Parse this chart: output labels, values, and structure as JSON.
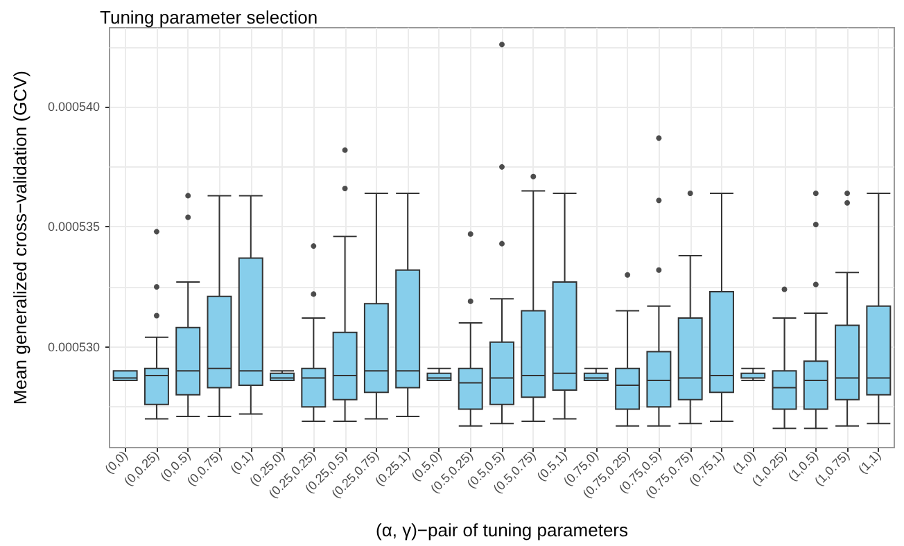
{
  "chart_data": {
    "type": "box",
    "title": "Tuning parameter selection",
    "xlabel": "(α, γ)−pair of tuning parameters",
    "ylabel": "Mean generalized cross−validation (GCV)",
    "categories": [
      "(0,0)",
      "(0,0.25)",
      "(0,0.5)",
      "(0,0.75)",
      "(0,1)",
      "(0.25,0)",
      "(0.25,0.25)",
      "(0.25,0.5)",
      "(0.25,0.75)",
      "(0.25,1)",
      "(0.5,0)",
      "(0.5,0.25)",
      "(0.5,0.5)",
      "(0.5,0.75)",
      "(0.5,1)",
      "(0.75,0)",
      "(0.75,0.25)",
      "(0.75,0.5)",
      "(0.75,0.75)",
      "(0.75,1)",
      "(1,0)",
      "(1,0.25)",
      "(1,0.5)",
      "(1,0.75)",
      "(1,1)"
    ],
    "ylim": [
      0.0005258,
      0.0005433
    ],
    "yticks": [
      {
        "value": 0.0005275,
        "label": null
      },
      {
        "value": 0.00053,
        "label": "0.000530"
      },
      {
        "value": 0.0005325,
        "label": null
      },
      {
        "value": 0.000535,
        "label": "0.000535"
      },
      {
        "value": 0.0005375,
        "label": null
      },
      {
        "value": 0.00054,
        "label": "0.000540"
      },
      {
        "value": 0.0005425,
        "label": null
      }
    ],
    "grid": true,
    "series": [
      {
        "color": "#87ceeb",
        "boxes": [
          {
            "low": 0.0005286,
            "q1": 0.0005286,
            "median": 0.0005287,
            "q3": 0.000529,
            "high": 0.000529
          },
          {
            "low": 0.000527,
            "q1": 0.0005276,
            "median": 0.0005288,
            "q3": 0.0005291,
            "high": 0.0005304,
            "outliers": [
              0.0005348,
              0.0005325,
              0.0005313
            ]
          },
          {
            "low": 0.0005271,
            "q1": 0.000528,
            "median": 0.000529,
            "q3": 0.0005308,
            "high": 0.0005327,
            "outliers": [
              0.0005363,
              0.0005354
            ]
          },
          {
            "low": 0.0005271,
            "q1": 0.0005283,
            "median": 0.0005291,
            "q3": 0.0005321,
            "high": 0.0005363
          },
          {
            "low": 0.0005272,
            "q1": 0.0005284,
            "median": 0.000529,
            "q3": 0.0005337,
            "high": 0.0005363
          },
          {
            "low": 0.0005286,
            "q1": 0.0005286,
            "median": 0.0005287,
            "q3": 0.0005289,
            "high": 0.000529
          },
          {
            "low": 0.0005269,
            "q1": 0.0005275,
            "median": 0.0005287,
            "q3": 0.0005291,
            "high": 0.0005312,
            "outliers": [
              0.0005342,
              0.0005322
            ]
          },
          {
            "low": 0.0005269,
            "q1": 0.0005278,
            "median": 0.0005288,
            "q3": 0.0005306,
            "high": 0.0005346,
            "outliers": [
              0.0005382,
              0.0005366
            ]
          },
          {
            "low": 0.000527,
            "q1": 0.0005281,
            "median": 0.000529,
            "q3": 0.0005318,
            "high": 0.0005364
          },
          {
            "low": 0.0005271,
            "q1": 0.0005283,
            "median": 0.000529,
            "q3": 0.0005332,
            "high": 0.0005364
          },
          {
            "low": 0.0005286,
            "q1": 0.0005286,
            "median": 0.0005287,
            "q3": 0.0005289,
            "high": 0.0005291
          },
          {
            "low": 0.0005267,
            "q1": 0.0005274,
            "median": 0.0005285,
            "q3": 0.0005291,
            "high": 0.000531,
            "outliers": [
              0.0005347,
              0.0005319
            ]
          },
          {
            "low": 0.0005268,
            "q1": 0.0005276,
            "median": 0.0005287,
            "q3": 0.0005302,
            "high": 0.000532,
            "outliers": [
              0.0005426,
              0.0005375,
              0.0005343
            ]
          },
          {
            "low": 0.0005269,
            "q1": 0.0005279,
            "median": 0.0005288,
            "q3": 0.0005315,
            "high": 0.0005365,
            "outliers": [
              0.0005371
            ]
          },
          {
            "low": 0.000527,
            "q1": 0.0005282,
            "median": 0.0005289,
            "q3": 0.0005327,
            "high": 0.0005364
          },
          {
            "low": 0.0005286,
            "q1": 0.0005286,
            "median": 0.0005287,
            "q3": 0.0005289,
            "high": 0.0005291
          },
          {
            "low": 0.0005267,
            "q1": 0.0005274,
            "median": 0.0005284,
            "q3": 0.0005291,
            "high": 0.0005315,
            "outliers": [
              0.000533
            ]
          },
          {
            "low": 0.0005267,
            "q1": 0.0005275,
            "median": 0.0005286,
            "q3": 0.0005298,
            "high": 0.0005317,
            "outliers": [
              0.0005387,
              0.0005361,
              0.0005332
            ]
          },
          {
            "low": 0.0005268,
            "q1": 0.0005278,
            "median": 0.0005287,
            "q3": 0.0005312,
            "high": 0.0005338,
            "outliers": [
              0.0005364
            ]
          },
          {
            "low": 0.0005269,
            "q1": 0.0005281,
            "median": 0.0005288,
            "q3": 0.0005323,
            "high": 0.0005364
          },
          {
            "low": 0.0005286,
            "q1": 0.0005287,
            "median": 0.0005287,
            "q3": 0.0005289,
            "high": 0.0005291
          },
          {
            "low": 0.0005266,
            "q1": 0.0005274,
            "median": 0.0005283,
            "q3": 0.000529,
            "high": 0.0005312,
            "outliers": [
              0.0005324
            ]
          },
          {
            "low": 0.0005266,
            "q1": 0.0005274,
            "median": 0.0005286,
            "q3": 0.0005294,
            "high": 0.0005314,
            "outliers": [
              0.0005364,
              0.0005351,
              0.0005326
            ]
          },
          {
            "low": 0.0005267,
            "q1": 0.0005278,
            "median": 0.0005287,
            "q3": 0.0005309,
            "high": 0.0005331,
            "outliers": [
              0.0005364,
              0.000536
            ]
          },
          {
            "low": 0.0005268,
            "q1": 0.000528,
            "median": 0.0005287,
            "q3": 0.0005317,
            "high": 0.0005364
          }
        ]
      }
    ]
  }
}
